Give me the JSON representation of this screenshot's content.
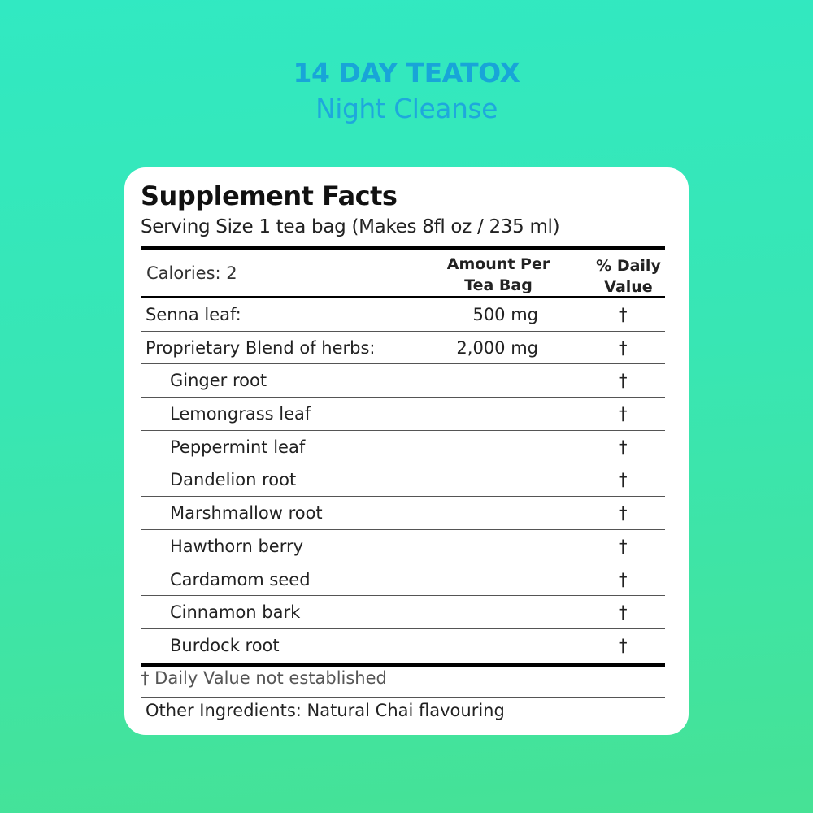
{
  "brand": {
    "title": "14 DAY TEATOX",
    "subtitle": "Night Cleanse",
    "color": "#18a5d8"
  },
  "facts": {
    "title": "Supplement Facts",
    "serving": "Serving Size 1 tea bag (Makes 8fl oz / 235 ml)",
    "calories": "Calories: 2",
    "col_amount": "Amount Per Tea Bag",
    "col_dv": "% Daily Value",
    "rows": [
      {
        "name": "Senna leaf:",
        "amount": "500 mg",
        "dv": "†",
        "sub": false
      },
      {
        "name": "Proprietary Blend of herbs:",
        "amount": "2,000 mg",
        "dv": "†",
        "sub": false
      },
      {
        "name": "Ginger root",
        "amount": "",
        "dv": "†",
        "sub": true
      },
      {
        "name": "Lemongrass leaf",
        "amount": "",
        "dv": "†",
        "sub": true
      },
      {
        "name": "Peppermint leaf",
        "amount": "",
        "dv": "†",
        "sub": true
      },
      {
        "name": "Dandelion root",
        "amount": "",
        "dv": "†",
        "sub": true
      },
      {
        "name": "Marshmallow root",
        "amount": "",
        "dv": "†",
        "sub": true
      },
      {
        "name": "Hawthorn berry",
        "amount": "",
        "dv": "†",
        "sub": true
      },
      {
        "name": "Cardamom seed",
        "amount": "",
        "dv": "†",
        "sub": true
      },
      {
        "name": "Cinnamon bark",
        "amount": "",
        "dv": "†",
        "sub": true
      },
      {
        "name": "Burdock root",
        "amount": "",
        "dv": "†",
        "sub": true
      }
    ],
    "footnote": "† Daily Value not established",
    "other_ingredients": "Other Ingredients: Natural Chai flavouring"
  }
}
